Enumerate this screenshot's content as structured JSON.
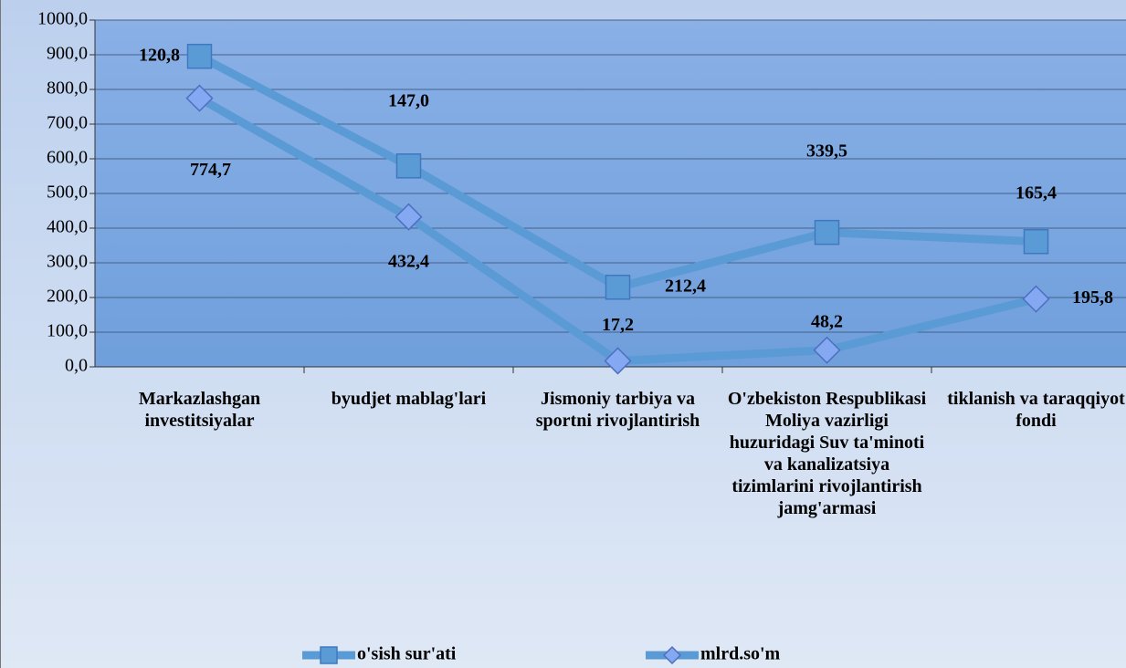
{
  "chart_data": {
    "type": "line",
    "stacked": true,
    "categories": [
      "Markazlashgan investitsiyalar",
      "byudjet mablag'lari",
      "Jismoniy tarbiya va sportni rivojlantirish",
      "O'zbekiston Respublikasi Moliya vazirligi huzuridagi Suv ta'minoti va kanalizatsiya tizimlarini rivojlantirish jamg'armasi",
      "tiklanish va taraqqiyot fondi"
    ],
    "series": [
      {
        "name": "o'sish sur'ati",
        "color": "#5b9bd5",
        "marker": "square",
        "values": [
          120.8,
          147.0,
          212.4,
          339.5,
          165.4
        ],
        "value_labels": [
          "120,8",
          "147,0",
          "212,4",
          "339,5",
          "165,4"
        ]
      },
      {
        "name": "mlrd.so'm",
        "color": "#5b9bd5",
        "marker": "diamond",
        "values": [
          774.7,
          432.4,
          17.2,
          48.2,
          195.8
        ],
        "value_labels": [
          "774,7",
          "432,4",
          "17,2",
          "48,2",
          "195,8"
        ]
      }
    ],
    "ylim": [
      0,
      1000
    ],
    "yticks": [
      {
        "value": 0,
        "label": "0,0"
      },
      {
        "value": 100,
        "label": "100,0"
      },
      {
        "value": 200,
        "label": "200,0"
      },
      {
        "value": 300,
        "label": "300,0"
      },
      {
        "value": 400,
        "label": "400,0"
      },
      {
        "value": 500,
        "label": "500,0"
      },
      {
        "value": 600,
        "label": "600,0"
      },
      {
        "value": 700,
        "label": "700,0"
      },
      {
        "value": 800,
        "label": "800,0"
      },
      {
        "value": 900,
        "label": "900,0"
      },
      {
        "value": 1000,
        "label": "1000,0"
      }
    ],
    "grid": true,
    "legend": "bottom"
  }
}
